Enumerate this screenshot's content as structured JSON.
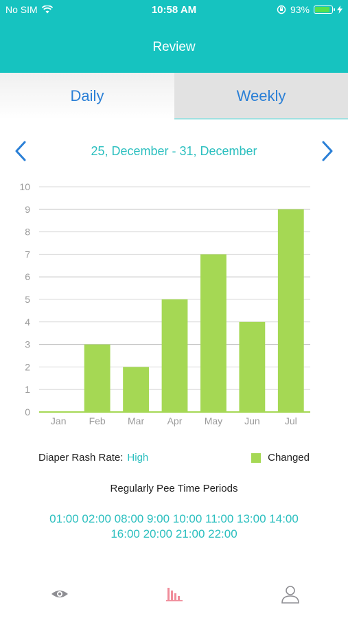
{
  "status_bar": {
    "carrier": "No SIM",
    "time": "10:58 AM",
    "battery": "93%",
    "battery_level": 0.93
  },
  "header": {
    "title": "Review"
  },
  "tabs": [
    {
      "label": "Daily"
    },
    {
      "label": "Weekly"
    }
  ],
  "range": {
    "label": "25, December - 31, December"
  },
  "chart_data": {
    "type": "bar",
    "categories": [
      "Jan",
      "Feb",
      "Mar",
      "Apr",
      "May",
      "Jun",
      "Jul"
    ],
    "series": [
      {
        "name": "Changed",
        "values": [
          0,
          3,
          2,
          5,
          7,
          4,
          9
        ]
      }
    ],
    "y_ticks": [
      0,
      1,
      2,
      3,
      4,
      5,
      6,
      7,
      8,
      9,
      10
    ],
    "ylim": [
      0,
      10
    ],
    "grid": true,
    "legend_placement": "bottom-right",
    "bar_color": "#a5d854"
  },
  "info": {
    "rash_label": "Diaper Rash Rate:",
    "rash_value": "High",
    "legend_label": "Changed"
  },
  "pee": {
    "title": "Regularly Pee Time Periods",
    "line1": "01:00 02:00 08:00 9:00 10:00 11:00 13:00 14:00",
    "line2": "16:00 20:00 21:00 22:00"
  },
  "colors": {
    "accent": "#16c3c0",
    "link": "#2a7fd6",
    "bar": "#a5d854",
    "active_tab_icon": "#f08c9a"
  }
}
